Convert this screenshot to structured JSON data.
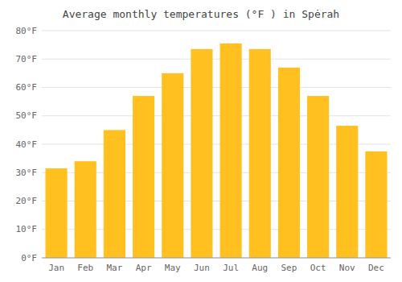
{
  "chart_data": {
    "type": "bar",
    "title": "Average monthly temperatures (°F ) in Spėrah",
    "categories": [
      "Jan",
      "Feb",
      "Mar",
      "Apr",
      "May",
      "Jun",
      "Jul",
      "Aug",
      "Sep",
      "Oct",
      "Nov",
      "Dec"
    ],
    "values": [
      31.5,
      34.0,
      45.0,
      57.0,
      65.0,
      73.5,
      75.5,
      73.5,
      67.0,
      57.0,
      46.5,
      37.5
    ],
    "color": "#FFC020",
    "ylim": [
      0,
      80
    ],
    "yticks": [
      {
        "value": 0,
        "label": "0°F"
      },
      {
        "value": 10,
        "label": "10°F"
      },
      {
        "value": 20,
        "label": "20°F"
      },
      {
        "value": 30,
        "label": "30°F"
      },
      {
        "value": 40,
        "label": "40°F"
      },
      {
        "value": 50,
        "label": "50°F"
      },
      {
        "value": 60,
        "label": "60°F"
      },
      {
        "value": 70,
        "label": "70°F"
      },
      {
        "value": 80,
        "label": "80°F"
      }
    ],
    "grid": true
  }
}
